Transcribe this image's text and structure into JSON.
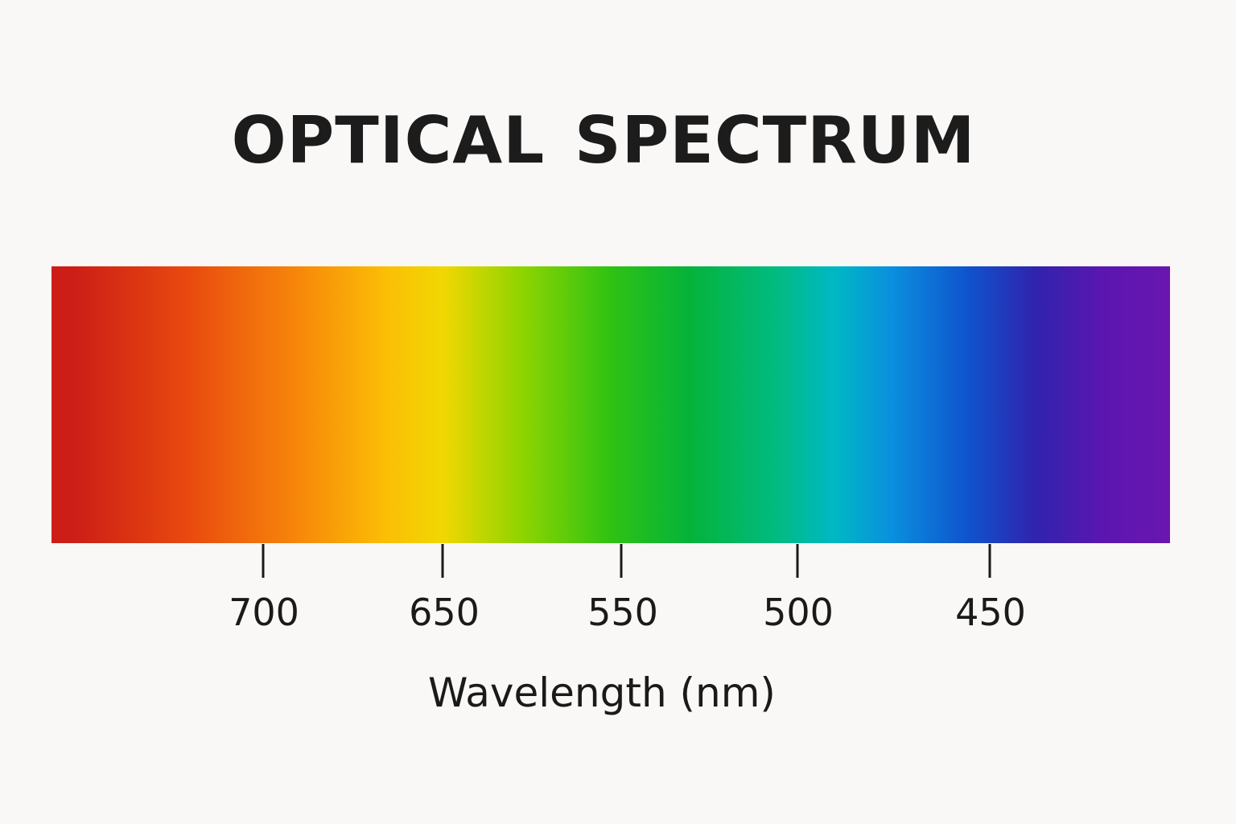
{
  "title": "OPTICAL SPECTRUM",
  "axis_label": "Wavelength (nm)",
  "ticks": [
    "700",
    "650",
    "550",
    "500",
    "450"
  ],
  "spectrum_colors": [
    "#cc1e16",
    "#f7870a",
    "#f1d702",
    "#2fc213",
    "#00b8c4",
    "#0f53cc",
    "#6a16b0"
  ]
}
